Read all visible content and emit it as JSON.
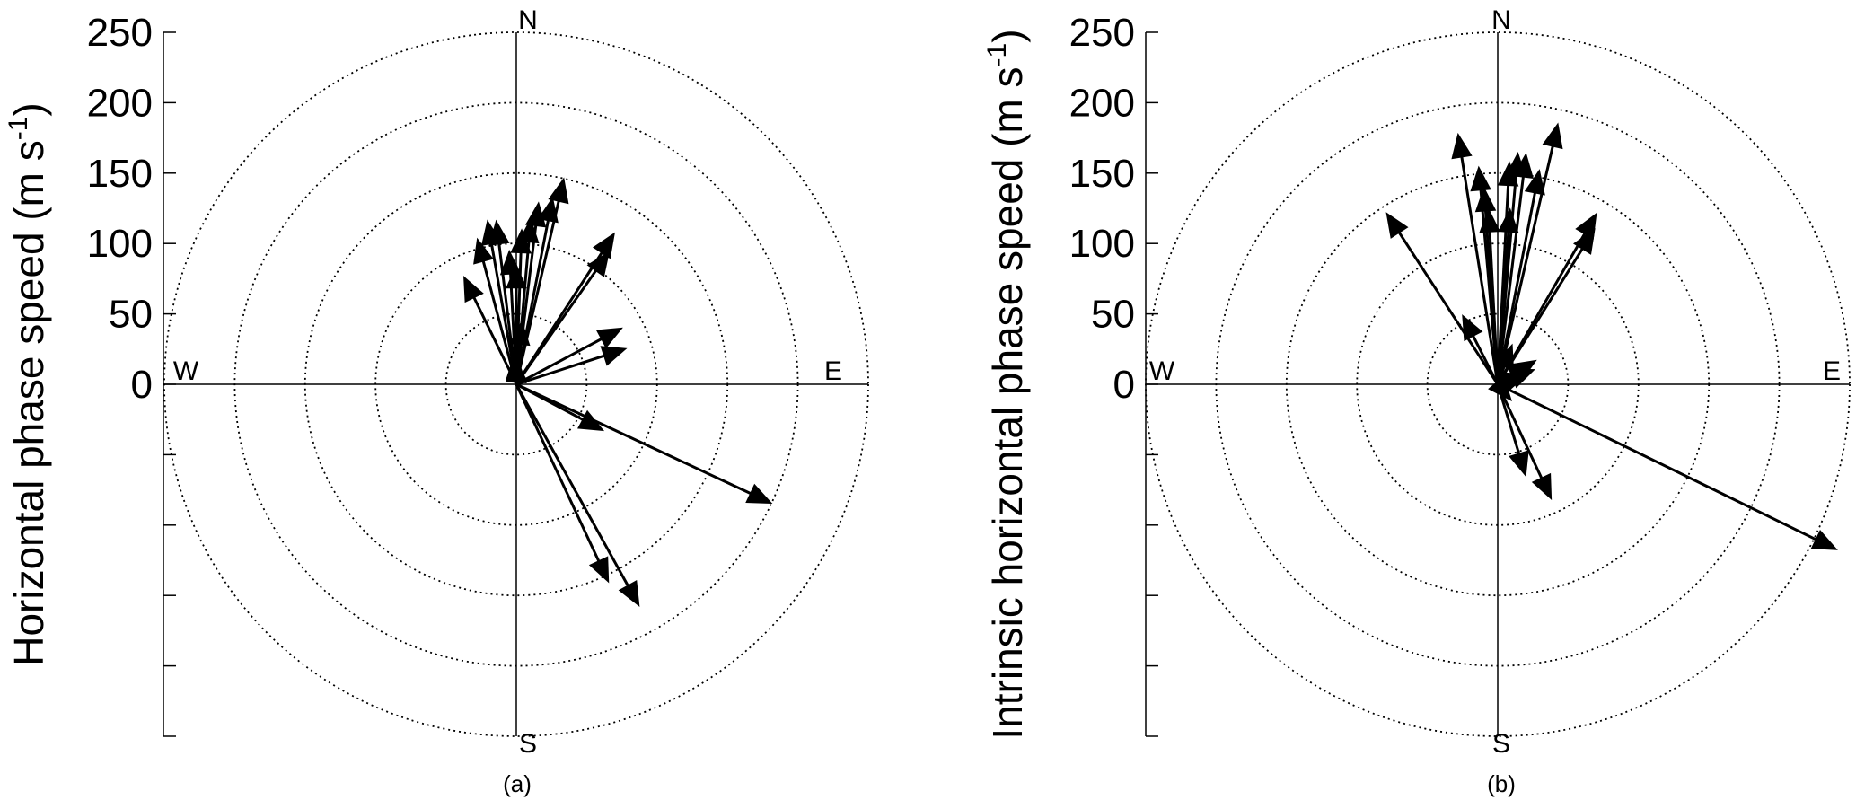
{
  "chart_data": [
    {
      "type": "polar-vector",
      "panel_label": "(a)",
      "ylabel": "Horizontal phase speed (m s-1)",
      "ylabel_main": "Horizontal phase speed (m s",
      "ylabel_sup": "-1",
      "ylabel_close": ")",
      "radial_ticks": [
        "0",
        "50",
        "100",
        "150",
        "200",
        "250"
      ],
      "rlim": [
        0,
        250
      ],
      "rings": [
        50,
        100,
        150,
        200,
        250
      ],
      "directions": {
        "north": "N",
        "south": "S",
        "east": "E",
        "west": "W"
      },
      "vectors": [
        {
          "az": -26,
          "speed": 85
        },
        {
          "az": -15,
          "speed": 107
        },
        {
          "az": -10,
          "speed": 118
        },
        {
          "az": -7,
          "speed": 117
        },
        {
          "az": -3,
          "speed": 95
        },
        {
          "az": 0,
          "speed": 85
        },
        {
          "az": 2,
          "speed": 110
        },
        {
          "az": 5,
          "speed": 118
        },
        {
          "az": 7,
          "speed": 130
        },
        {
          "az": 11,
          "speed": 135
        },
        {
          "az": 13,
          "speed": 150
        },
        {
          "az": 33,
          "speed": 128
        },
        {
          "az": 35,
          "speed": 115
        },
        {
          "az": 5,
          "speed": 45
        },
        {
          "az": -5,
          "speed": 20
        },
        {
          "az": 3,
          "speed": 18
        },
        {
          "az": 62,
          "speed": 85
        },
        {
          "az": 72,
          "speed": 82
        },
        {
          "az": 118,
          "speed": 70
        },
        {
          "az": 115,
          "speed": 200
        },
        {
          "az": 155,
          "speed": 155
        },
        {
          "az": 151,
          "speed": 180
        }
      ]
    },
    {
      "type": "polar-vector",
      "panel_label": "(b)",
      "ylabel": "Intrinsic horizontal phase speed (m s-1)",
      "ylabel_main": "Intrinsic horizontal phase speed (m s",
      "ylabel_sup": "-1",
      "ylabel_close": ")",
      "radial_ticks": [
        "0",
        "50",
        "100",
        "150",
        "200",
        "250"
      ],
      "rlim": [
        0,
        250
      ],
      "rings": [
        50,
        100,
        150,
        200,
        250
      ],
      "directions": {
        "north": "N",
        "south": "S",
        "east": "E",
        "west": "W"
      },
      "vectors": [
        {
          "az": -33,
          "speed": 145
        },
        {
          "az": -9,
          "speed": 180
        },
        {
          "az": -5,
          "speed": 155
        },
        {
          "az": -4,
          "speed": 140
        },
        {
          "az": -3,
          "speed": 125
        },
        {
          "az": 3,
          "speed": 158
        },
        {
          "az": 5,
          "speed": 165
        },
        {
          "az": 7,
          "speed": 165
        },
        {
          "az": 4,
          "speed": 125
        },
        {
          "az": 11,
          "speed": 155
        },
        {
          "az": 13,
          "speed": 190
        },
        {
          "az": 30,
          "speed": 140
        },
        {
          "az": 32,
          "speed": 130
        },
        {
          "az": -27,
          "speed": 55
        },
        {
          "az": 20,
          "speed": 30
        },
        {
          "az": 58,
          "speed": 32
        },
        {
          "az": 68,
          "speed": 28
        },
        {
          "az": 72,
          "speed": 22
        },
        {
          "az": 140,
          "speed": 15
        },
        {
          "az": 163,
          "speed": 68
        },
        {
          "az": 155,
          "speed": 90
        },
        {
          "az": 116,
          "speed": 268
        }
      ]
    }
  ]
}
